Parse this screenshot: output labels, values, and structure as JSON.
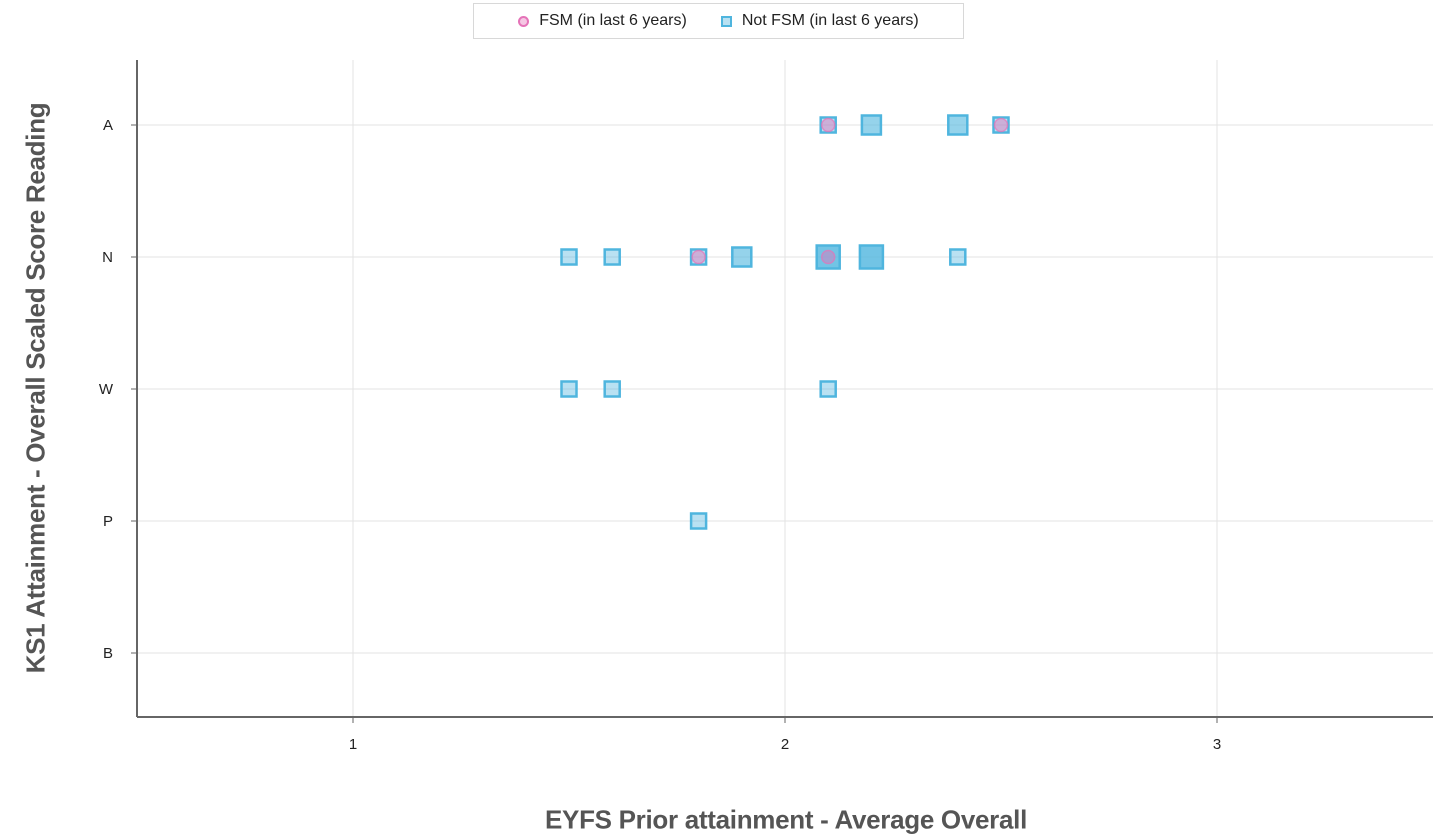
{
  "chart_data": {
    "type": "scatter",
    "xlabel": "EYFS Prior attainment - Average Overall",
    "ylabel": "KS1 Attainment - Overall Scaled Score Reading",
    "xlim": [
      0.5,
      3.5
    ],
    "x_ticks": [
      1,
      2,
      3
    ],
    "x_tick_labels": [
      "1",
      "2",
      "3"
    ],
    "y_categories": [
      "A",
      "N",
      "W",
      "P",
      "B"
    ],
    "grid": true,
    "legend_position": "top-center",
    "series": [
      {
        "name": "FSM (in last 6 years)",
        "marker": "circle",
        "color": "#e573b8",
        "points": [
          {
            "x": 2.1,
            "y": "A",
            "count": 1
          },
          {
            "x": 2.5,
            "y": "A",
            "count": 1
          },
          {
            "x": 1.8,
            "y": "N",
            "count": 1
          },
          {
            "x": 2.1,
            "y": "N",
            "count": 1
          }
        ]
      },
      {
        "name": "Not FSM (in last 6 years)",
        "marker": "square",
        "color": "#4fb5de",
        "points": [
          {
            "x": 2.1,
            "y": "A",
            "count": 1
          },
          {
            "x": 2.2,
            "y": "A",
            "count": 2
          },
          {
            "x": 2.4,
            "y": "A",
            "count": 2
          },
          {
            "x": 2.5,
            "y": "A",
            "count": 1
          },
          {
            "x": 1.5,
            "y": "N",
            "count": 1
          },
          {
            "x": 1.6,
            "y": "N",
            "count": 1
          },
          {
            "x": 1.8,
            "y": "N",
            "count": 1
          },
          {
            "x": 1.9,
            "y": "N",
            "count": 2
          },
          {
            "x": 2.1,
            "y": "N",
            "count": 3
          },
          {
            "x": 2.2,
            "y": "N",
            "count": 3
          },
          {
            "x": 2.4,
            "y": "N",
            "count": 1
          },
          {
            "x": 1.5,
            "y": "W",
            "count": 1
          },
          {
            "x": 1.6,
            "y": "W",
            "count": 1
          },
          {
            "x": 2.1,
            "y": "W",
            "count": 1
          },
          {
            "x": 1.8,
            "y": "P",
            "count": 1
          }
        ]
      }
    ]
  }
}
